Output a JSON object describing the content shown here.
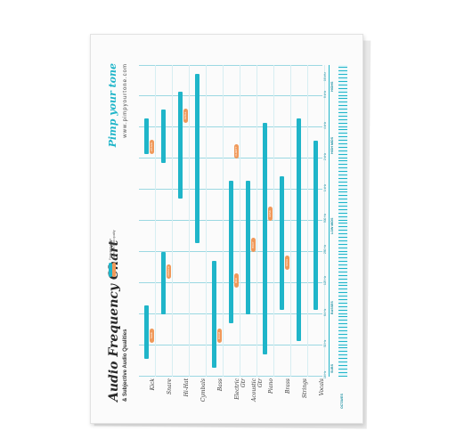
{
  "brand": {
    "name": "Pimp your tone",
    "url": "www.pimpyourtone.com"
  },
  "chart": {
    "title": "Audio Frequency Chart",
    "subtitle": "& Subjective Audio Qualities",
    "legend": [
      "Frequency range",
      "Subjective audio quality"
    ],
    "instruments": [
      "Kick",
      "Snare",
      "Hi-Hat",
      "Cymbals",
      "Bass",
      "Electric Gtr",
      "Acoustic Gtr",
      "Piano",
      "Brass",
      "Strings",
      "Vocals"
    ],
    "frequency_ticks": [
      "16 Hz",
      "32 Hz",
      "64 Hz",
      "125 Hz",
      "250 Hz",
      "500 Hz",
      "1 kHz",
      "2 kHz",
      "4 kHz",
      "8 kHz",
      "16 kHz"
    ],
    "bands": [
      "SUBS",
      "BASSES",
      "LOW MIDS",
      "HIGH MIDS",
      "HIGHS"
    ],
    "octaves_label": "OCTAVES",
    "qualities": [
      "THUD",
      "BOOM",
      "MUD",
      "BOXY",
      "NASAL",
      "HONK",
      "ATTACK",
      "SIZZLE",
      "AIR",
      "PRESENCE",
      "CLARITY",
      "BRIGHT",
      "FULLNESS",
      "WARMTH",
      "WOOD",
      "CRUNCH",
      "EDGE",
      "BITE",
      "TONE",
      "RASP"
    ]
  },
  "colors": {
    "accent": "#1fb5c9",
    "quality": "#f0995a"
  }
}
